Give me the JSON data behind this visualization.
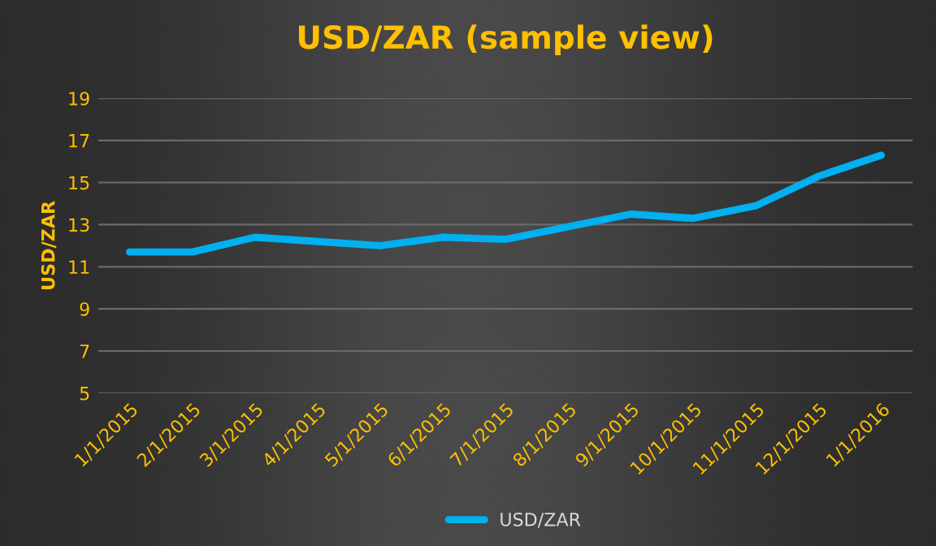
{
  "chart_data": {
    "type": "line",
    "title": "USD/ZAR (sample view)",
    "ylabel": "USD/ZAR",
    "categories": [
      "1/1/2015",
      "2/1/2015",
      "3/1/2015",
      "4/1/2015",
      "5/1/2015",
      "6/1/2015",
      "7/1/2015",
      "8/1/2015",
      "9/1/2015",
      "10/1/2015",
      "11/1/2015",
      "12/1/2015",
      "1/1/2016"
    ],
    "series": [
      {
        "name": "USD/ZAR",
        "color": "#00b0f0",
        "values": [
          11.7,
          11.7,
          12.4,
          12.2,
          12.0,
          12.4,
          12.3,
          12.9,
          13.5,
          13.3,
          13.9,
          15.3,
          16.3
        ]
      }
    ],
    "ylim": [
      5,
      19
    ],
    "yticks": [
      5,
      7,
      9,
      11,
      13,
      15,
      17,
      19
    ],
    "grid": "y",
    "legend": "bottom",
    "marker": "none",
    "line_style": "solid"
  }
}
